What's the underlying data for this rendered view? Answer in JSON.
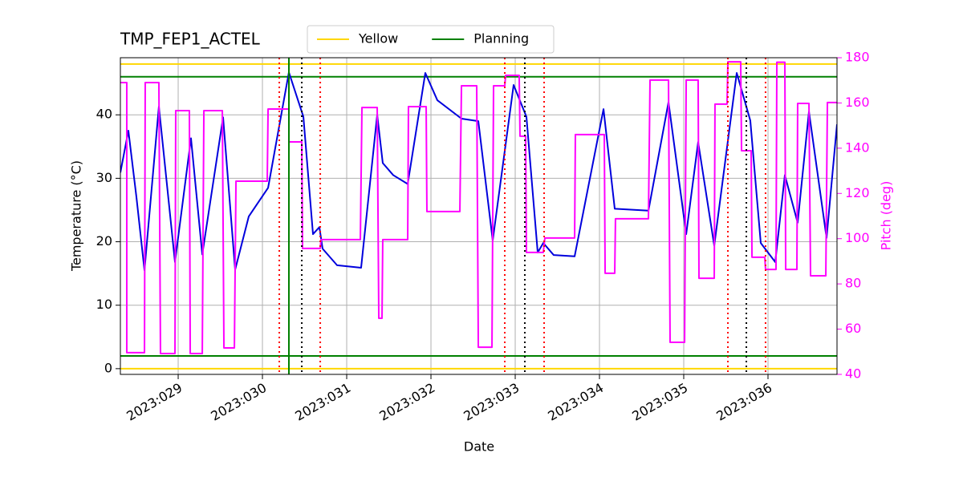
{
  "chart_data": {
    "type": "line",
    "title": "TMP_FEP1_ACTEL",
    "xlabel": "Date",
    "ylabel": "Temperature (°C)",
    "y2label": "Pitch (deg)",
    "xlim": [
      28.314,
      36.819
    ],
    "xticks": [
      {
        "value": 29,
        "label": "2023:029"
      },
      {
        "value": 30,
        "label": "2023:030"
      },
      {
        "value": 31,
        "label": "2023:031"
      },
      {
        "value": 32,
        "label": "2023:032"
      },
      {
        "value": 33,
        "label": "2023:033"
      },
      {
        "value": 34,
        "label": "2023:034"
      },
      {
        "value": 35,
        "label": "2023:035"
      },
      {
        "value": 36,
        "label": "2023:036"
      }
    ],
    "ylim": [
      -0.9,
      49
    ],
    "yticks": [
      0,
      10,
      20,
      30,
      40
    ],
    "y2lim": [
      40,
      180
    ],
    "y2ticks": [
      40,
      60,
      80,
      100,
      120,
      140,
      160,
      180
    ],
    "y2color": "#ff00ff",
    "grid": true,
    "legend": "top",
    "series": [
      {
        "color": "#0000dd",
        "x": [
          28.314,
          28.409,
          28.504,
          28.6,
          28.771,
          28.962,
          29.152,
          29.286,
          29.533,
          29.676,
          29.838,
          30.067,
          30.314,
          30.486,
          30.6,
          30.676,
          30.714,
          30.886,
          31.171,
          31.362,
          31.428,
          31.552,
          31.724,
          31.933,
          32.076,
          32.362,
          32.562,
          32.733,
          32.981,
          33.133,
          33.267,
          33.333,
          33.457,
          33.705,
          34.048,
          34.181,
          34.581,
          34.819,
          35.029,
          35.171,
          35.362,
          35.629,
          35.79,
          35.914,
          36.086,
          36.2,
          36.352,
          36.486,
          36.695,
          36.819
        ],
        "values": [
          30.9,
          37.5,
          27.1,
          15.5,
          41.3,
          16.8,
          36.3,
          18.0,
          39.6,
          15.6,
          24.0,
          28.5,
          46.7,
          39.7,
          21.2,
          22.3,
          18.9,
          16.3,
          15.9,
          40.0,
          32.4,
          30.5,
          29.1,
          46.6,
          42.3,
          39.4,
          39.0,
          20.2,
          44.7,
          39.7,
          18.3,
          19.8,
          17.9,
          17.7,
          40.9,
          25.2,
          24.9,
          42.0,
          21.2,
          35.7,
          19.4,
          46.6,
          39.1,
          19.8,
          16.8,
          30.5,
          23.0,
          40.5,
          20.6,
          38.5
        ]
      },
      {
        "color": "#ff00ff",
        "axis": "y2",
        "x": [
          28.314,
          28.39,
          28.39,
          28.6,
          28.609,
          28.771,
          28.79,
          28.962,
          28.971,
          29.133,
          29.143,
          29.286,
          29.305,
          29.524,
          29.543,
          29.667,
          29.686,
          30.057,
          30.067,
          30.314,
          30.314,
          30.467,
          30.476,
          30.686,
          30.695,
          31.162,
          31.181,
          31.362,
          31.381,
          31.419,
          31.428,
          31.724,
          31.733,
          31.943,
          31.952,
          32.343,
          32.362,
          32.543,
          32.562,
          32.724,
          32.743,
          32.876,
          32.886,
          33.047,
          33.057,
          33.124,
          33.133,
          33.333,
          33.352,
          33.705,
          33.714,
          34.057,
          34.067,
          34.181,
          34.19,
          34.581,
          34.6,
          34.819,
          34.838,
          35.01,
          35.029,
          35.171,
          35.181,
          35.362,
          35.371,
          35.514,
          35.524,
          35.676,
          35.686,
          35.8,
          35.81,
          35.962,
          35.971,
          36.095,
          36.105,
          36.2,
          36.21,
          36.343,
          36.352,
          36.486,
          36.505,
          36.686,
          36.705,
          36.819
        ],
        "values": [
          169,
          169,
          49.6,
          49.6,
          169,
          169,
          49.2,
          49.2,
          156.6,
          156.6,
          49.2,
          49.2,
          156.6,
          156.6,
          51.7,
          51.7,
          125.4,
          125.4,
          157.3,
          157.3,
          142.8,
          142.8,
          95.7,
          95.7,
          99.6,
          99.6,
          158,
          158,
          64.8,
          64.8,
          99.6,
          99.6,
          158.4,
          158.4,
          112,
          112,
          167.6,
          167.6,
          52,
          52,
          167.6,
          167.6,
          172.2,
          172.2,
          145.3,
          145.3,
          93.9,
          93.9,
          100.3,
          100.3,
          146,
          146,
          84.7,
          84.7,
          108.8,
          108.8,
          170.1,
          170.1,
          54.2,
          54.2,
          170.1,
          170.1,
          82.5,
          82.5,
          159.5,
          159.5,
          178.2,
          178.2,
          138.9,
          138.9,
          91.8,
          91.8,
          86.4,
          86.4,
          178,
          178,
          86.4,
          86.4,
          159.8,
          159.8,
          83.6,
          83.6,
          160.2,
          160.2
        ]
      }
    ],
    "hlines": [
      {
        "name": "Yellow",
        "color": "#ffd700",
        "values": [
          0,
          48
        ]
      },
      {
        "name": "Planning",
        "color": "#008000",
        "values": [
          2,
          46
        ]
      }
    ],
    "vlines": [
      {
        "color": "#008000",
        "style": "solid",
        "x": [
          30.314
        ]
      },
      {
        "color": "#000000",
        "style": "dotted",
        "x": [
          30.467,
          33.114,
          35.743
        ]
      },
      {
        "color": "#ff0000",
        "style": "dotted",
        "x": [
          30.2,
          30.686,
          32.876,
          33.343,
          35.524,
          35.971
        ]
      }
    ]
  }
}
